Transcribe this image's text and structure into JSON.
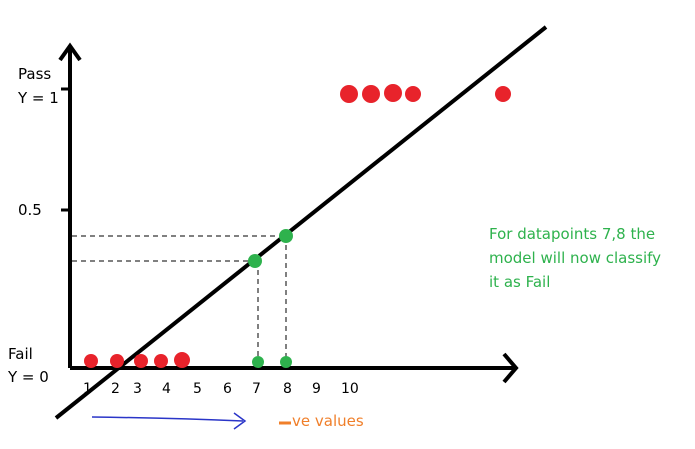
{
  "labels": {
    "pass_line1": "Pass",
    "pass_line2": "Y = 1",
    "half": "0.5",
    "fail_line1": "Fail",
    "fail_line2": "Y = 0"
  },
  "x_ticks": [
    "1",
    "2",
    "3",
    "4",
    "5",
    "6",
    "7",
    "8",
    "9",
    "10"
  ],
  "note": {
    "line1": "For datapoints 7,8 the",
    "line2": "model will now classify",
    "line3": "it as Fail"
  },
  "negative_label": "ve values",
  "colors": {
    "axis": "#000000",
    "fail_points": "#e8232b",
    "pass_points": "#e8232b",
    "highlight_points": "#2eb24d",
    "arrow": "#2a35c8",
    "negative_text": "#f07f2a"
  }
}
